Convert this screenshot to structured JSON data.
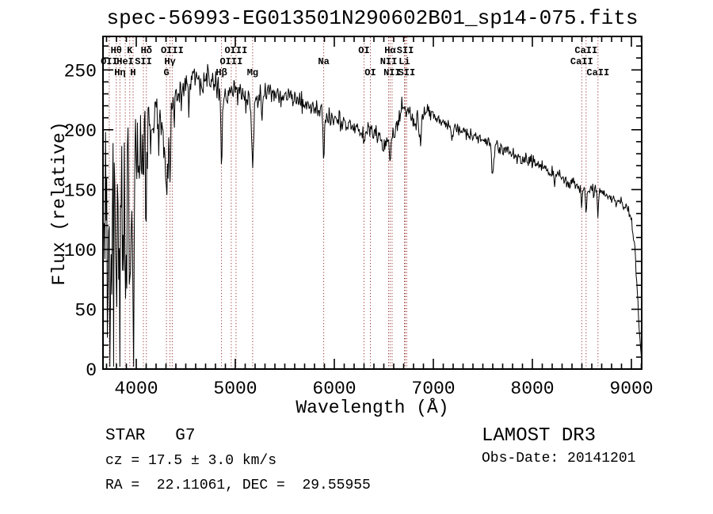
{
  "header": {
    "title": "spec-56993-EG013501N290602B01_sp14-075.fits"
  },
  "colors": {
    "background": "#ffffff",
    "spectrum": "#000000",
    "axis": "#000000",
    "line_marker": "#993333",
    "text": "#000000"
  },
  "annotations": {
    "class_label": "STAR   G7",
    "cz": "cz = 17.5 ± 3.0 km/s",
    "radec": "RA =  22.11061, DEC =  29.55955",
    "survey": "LAMOST DR3",
    "obs_date": "Obs-Date: 20141201"
  },
  "chart_data": {
    "type": "line",
    "title": "spec-56993-EG013501N290602B01_sp14-075.fits",
    "xlabel": "Wavelength (Å)",
    "ylabel": "Flux (relative)",
    "xlim": [
      3664,
      9104
    ],
    "ylim": [
      0,
      278
    ],
    "x_ticks_major": [
      4000,
      5000,
      6000,
      7000,
      8000,
      9000
    ],
    "y_ticks_major": [
      0,
      50,
      100,
      150,
      200,
      250
    ],
    "x_minor_step": 100,
    "y_minor_step": 10,
    "grid": false,
    "legend": null,
    "spectral_lines": [
      {
        "label": "OII",
        "wavelength": 3727,
        "row": 2
      },
      {
        "label": "Hθ",
        "wavelength": 3798,
        "row": 1
      },
      {
        "label": "Hη",
        "wavelength": 3835,
        "row": 3
      },
      {
        "label": "HeI",
        "wavelength": 3889,
        "row": 2
      },
      {
        "label": "K",
        "wavelength": 3934,
        "row": 1
      },
      {
        "label": "H",
        "wavelength": 3968,
        "row": 3
      },
      {
        "label": "SII",
        "wavelength": 4072,
        "row": 2
      },
      {
        "label": "Hδ",
        "wavelength": 4102,
        "row": 1
      },
      {
        "label": "G",
        "wavelength": 4305,
        "row": 3
      },
      {
        "label": "Hγ",
        "wavelength": 4341,
        "row": 2
      },
      {
        "label": "OIII",
        "wavelength": 4363,
        "row": 1
      },
      {
        "label": "Hβ",
        "wavelength": 4861,
        "row": 3
      },
      {
        "label": "OIII",
        "wavelength": 4959,
        "row": 2
      },
      {
        "label": "OIII",
        "wavelength": 5007,
        "row": 1
      },
      {
        "label": "Mg",
        "wavelength": 5175,
        "row": 3
      },
      {
        "label": "Na",
        "wavelength": 5893,
        "row": 2
      },
      {
        "label": "OI",
        "wavelength": 6300,
        "row": 1
      },
      {
        "label": "OI",
        "wavelength": 6364,
        "row": 3
      },
      {
        "label": "NII",
        "wavelength": 6548,
        "row": 2
      },
      {
        "label": "Hα",
        "wavelength": 6563,
        "row": 1
      },
      {
        "label": "NII",
        "wavelength": 6583,
        "row": 3
      },
      {
        "label": "Li",
        "wavelength": 6708,
        "row": 2
      },
      {
        "label": "SII",
        "wavelength": 6717,
        "row": 1
      },
      {
        "label": "SII",
        "wavelength": 6731,
        "row": 3
      },
      {
        "label": "CaII",
        "wavelength": 8498,
        "row": 2
      },
      {
        "label": "CaII",
        "wavelength": 8542,
        "row": 1
      },
      {
        "label": "CaII",
        "wavelength": 8662,
        "row": 3
      }
    ],
    "continuum_anchors": [
      [
        3664,
        140
      ],
      [
        3720,
        135
      ],
      [
        3780,
        128
      ],
      [
        3840,
        140
      ],
      [
        3900,
        155
      ],
      [
        3960,
        170
      ],
      [
        4020,
        190
      ],
      [
        4080,
        195
      ],
      [
        4140,
        208
      ],
      [
        4200,
        213
      ],
      [
        4260,
        205
      ],
      [
        4310,
        195
      ],
      [
        4370,
        222
      ],
      [
        4430,
        232
      ],
      [
        4500,
        240
      ],
      [
        4570,
        242
      ],
      [
        4640,
        241
      ],
      [
        4720,
        242
      ],
      [
        4800,
        238
      ],
      [
        4870,
        228
      ],
      [
        4940,
        230
      ],
      [
        5010,
        232
      ],
      [
        5090,
        228
      ],
      [
        5170,
        222
      ],
      [
        5250,
        228
      ],
      [
        5330,
        231
      ],
      [
        5410,
        228
      ],
      [
        5490,
        229
      ],
      [
        5570,
        226
      ],
      [
        5650,
        223
      ],
      [
        5730,
        222
      ],
      [
        5810,
        218
      ],
      [
        5890,
        212
      ],
      [
        5970,
        212
      ],
      [
        6050,
        208
      ],
      [
        6130,
        205
      ],
      [
        6210,
        202
      ],
      [
        6290,
        197
      ],
      [
        6370,
        197
      ],
      [
        6450,
        194
      ],
      [
        6530,
        191
      ],
      [
        6610,
        196
      ],
      [
        6690,
        222
      ],
      [
        6740,
        212
      ],
      [
        6800,
        207
      ],
      [
        6870,
        210
      ],
      [
        6940,
        217
      ],
      [
        7010,
        213
      ],
      [
        7090,
        207
      ],
      [
        7170,
        204
      ],
      [
        7260,
        199
      ],
      [
        7350,
        197
      ],
      [
        7440,
        193
      ],
      [
        7530,
        190
      ],
      [
        7620,
        186
      ],
      [
        7710,
        184
      ],
      [
        7800,
        180
      ],
      [
        7890,
        176
      ],
      [
        7980,
        174
      ],
      [
        8070,
        171
      ],
      [
        8160,
        167
      ],
      [
        8250,
        163
      ],
      [
        8340,
        158
      ],
      [
        8430,
        155
      ],
      [
        8520,
        152
      ],
      [
        8610,
        149
      ],
      [
        8700,
        146
      ],
      [
        8790,
        143
      ],
      [
        8880,
        139
      ],
      [
        8950,
        134
      ],
      [
        9000,
        126
      ],
      [
        9040,
        95
      ],
      [
        9070,
        45
      ],
      [
        9104,
        6
      ]
    ],
    "absorption_lines": [
      {
        "wavelength": 3712,
        "depth": 80,
        "width": 5
      },
      {
        "wavelength": 3735,
        "depth": 90,
        "width": 5
      },
      {
        "wavelength": 3750,
        "depth": 70,
        "width": 4
      },
      {
        "wavelength": 3771,
        "depth": 70,
        "width": 4
      },
      {
        "wavelength": 3798,
        "depth": 90,
        "width": 5
      },
      {
        "wavelength": 3820,
        "depth": 60,
        "width": 4
      },
      {
        "wavelength": 3835,
        "depth": 100,
        "width": 5
      },
      {
        "wavelength": 3860,
        "depth": 60,
        "width": 4
      },
      {
        "wavelength": 3889,
        "depth": 110,
        "width": 5
      },
      {
        "wavelength": 3934,
        "depth": 130,
        "width": 6
      },
      {
        "wavelength": 3968,
        "depth": 120,
        "width": 6
      },
      {
        "wavelength": 4026,
        "depth": 40,
        "width": 4
      },
      {
        "wavelength": 4072,
        "depth": 30,
        "width": 4
      },
      {
        "wavelength": 4102,
        "depth": 70,
        "width": 6
      },
      {
        "wavelength": 4144,
        "depth": 25,
        "width": 4
      },
      {
        "wavelength": 4227,
        "depth": 30,
        "width": 4
      },
      {
        "wavelength": 4305,
        "depth": 45,
        "width": 14
      },
      {
        "wavelength": 4341,
        "depth": 45,
        "width": 6
      },
      {
        "wavelength": 4383,
        "depth": 30,
        "width": 5
      },
      {
        "wavelength": 4455,
        "depth": 22,
        "width": 5
      },
      {
        "wavelength": 4531,
        "depth": 20,
        "width": 5
      },
      {
        "wavelength": 4668,
        "depth": 20,
        "width": 5
      },
      {
        "wavelength": 4861,
        "depth": 60,
        "width": 7
      },
      {
        "wavelength": 4920,
        "depth": 18,
        "width": 4
      },
      {
        "wavelength": 5107,
        "depth": 15,
        "width": 4
      },
      {
        "wavelength": 5175,
        "depth": 50,
        "width": 10
      },
      {
        "wavelength": 5270,
        "depth": 20,
        "width": 5
      },
      {
        "wavelength": 5893,
        "depth": 32,
        "width": 6
      },
      {
        "wavelength": 6122,
        "depth": 10,
        "width": 4
      },
      {
        "wavelength": 6300,
        "depth": 10,
        "width": 4
      },
      {
        "wavelength": 6494,
        "depth": 12,
        "width": 5
      },
      {
        "wavelength": 6563,
        "depth": 24,
        "width": 6
      },
      {
        "wavelength": 6867,
        "depth": 22,
        "width": 8
      },
      {
        "wavelength": 7190,
        "depth": 12,
        "width": 8
      },
      {
        "wavelength": 7600,
        "depth": 25,
        "width": 10
      },
      {
        "wavelength": 8227,
        "depth": 10,
        "width": 5
      },
      {
        "wavelength": 8498,
        "depth": 20,
        "width": 6
      },
      {
        "wavelength": 8542,
        "depth": 24,
        "width": 6
      },
      {
        "wavelength": 8662,
        "depth": 22,
        "width": 6
      }
    ],
    "noise_regions": [
      [
        3664,
        3800,
        105
      ],
      [
        3800,
        3950,
        80
      ],
      [
        3950,
        4120,
        45
      ],
      [
        4120,
        4350,
        22
      ],
      [
        4350,
        5050,
        15
      ],
      [
        5050,
        6000,
        11
      ],
      [
        6000,
        7050,
        10
      ],
      [
        7050,
        8200,
        7
      ],
      [
        8200,
        9000,
        7
      ],
      [
        9000,
        9104,
        8
      ]
    ]
  }
}
